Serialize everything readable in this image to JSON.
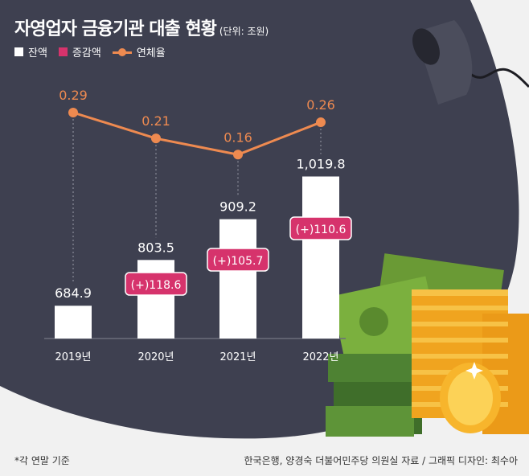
{
  "title": "자영업자 금융기관 대출 현황",
  "unit": "(단위: 조원)",
  "legend": {
    "balance": "잔액",
    "increase": "증감액",
    "delinquency": "연체율"
  },
  "colors": {
    "background": "#f1f1f1",
    "panel": "#3e4050",
    "bar": "#ffffff",
    "increase": "#d6336c",
    "line": "#ee8a50"
  },
  "chart_data": {
    "type": "bar",
    "title": "자영업자 금융기관 대출 현황",
    "unit": "조원",
    "categories": [
      "2019년",
      "2020년",
      "2021년",
      "2022년"
    ],
    "series": [
      {
        "name": "잔액",
        "type": "bar",
        "values": [
          684.9,
          803.5,
          909.2,
          1019.8
        ],
        "labels": [
          "684.9",
          "803.5",
          "909.2",
          "1,019.8"
        ]
      },
      {
        "name": "증감액",
        "type": "label",
        "values": [
          null,
          118.6,
          105.7,
          110.6
        ],
        "labels": [
          "",
          "(+)118.6",
          "(+)105.7",
          "(+)110.6"
        ]
      },
      {
        "name": "연체율",
        "type": "line",
        "values": [
          0.29,
          0.21,
          0.16,
          0.26
        ],
        "labels": [
          "0.29",
          "0.21",
          "0.16",
          "0.26"
        ]
      }
    ]
  },
  "footnote": "*각 연말 기준",
  "source": "한국은행, 양경숙 더불어민주당 의원실 자료 / 그래픽 디자인: 최수아"
}
